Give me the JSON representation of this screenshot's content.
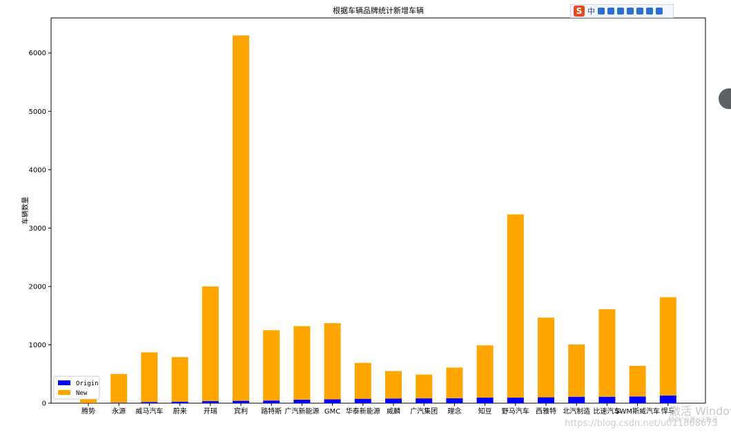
{
  "chart_data": {
    "type": "bar",
    "stacked": true,
    "title": "根据车辆品牌统计新增车辆",
    "xlabel": "",
    "ylabel": "车辆数量",
    "ylim": [
      0,
      6600
    ],
    "yticks": [
      0,
      1000,
      2000,
      3000,
      4000,
      5000,
      6000
    ],
    "grid": false,
    "legend_position": "lower-left",
    "categories": [
      "腾势",
      "永源",
      "威马汽车",
      "蔚来",
      "开瑞",
      "宾利",
      "路特斯",
      "广汽新能源",
      "GMC",
      "华泰新能源",
      "威麟",
      "广汽集团",
      "理念",
      "知豆",
      "野马汽车",
      "西雅特",
      "北汽制造",
      "比速汽车",
      "SWM斯威汽车",
      "悍马"
    ],
    "series": [
      {
        "name": "Origin",
        "color": "#0000ff",
        "values": [
          2,
          8,
          20,
          25,
          35,
          40,
          45,
          60,
          65,
          75,
          80,
          82,
          85,
          95,
          95,
          100,
          110,
          110,
          115,
          130
        ]
      },
      {
        "name": "New",
        "color": "#ffa500",
        "values": [
          428,
          492,
          850,
          765,
          1965,
          6260,
          1205,
          1260,
          1305,
          615,
          470,
          408,
          525,
          895,
          3140,
          1365,
          895,
          1500,
          525,
          1685
        ]
      }
    ]
  },
  "overlays": {
    "ime_logo": "S",
    "ime_mode": "中",
    "watermark_activate": "激活 Windows",
    "watermark_activate_sub": "转到\"设置\"以激活",
    "watermark_url": "https://blog.csdn.net/u011868673"
  }
}
